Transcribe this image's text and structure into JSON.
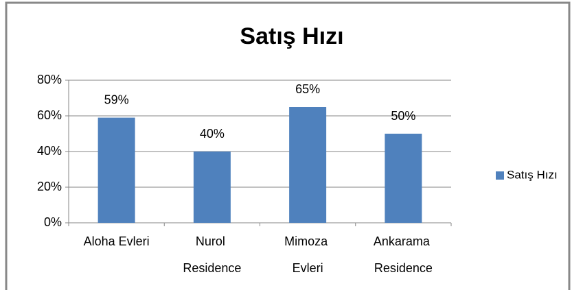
{
  "chart_data": {
    "type": "bar",
    "title": "Satış Hızı",
    "categories": [
      "Aloha Evleri",
      "Nurol Residence",
      "Mimoza Evleri",
      "Ankarama Residence"
    ],
    "series": [
      {
        "name": "Satış Hızı",
        "color": "#4f81bd",
        "values": [
          59,
          40,
          65,
          50
        ],
        "value_labels": [
          "59%",
          "40%",
          "65%",
          "50%"
        ]
      }
    ],
    "ylim": [
      0,
      80
    ],
    "yticks": [
      {
        "value": 0,
        "label": "0%"
      },
      {
        "value": 20,
        "label": "20%"
      },
      {
        "value": 40,
        "label": "40%"
      },
      {
        "value": 60,
        "label": "60%"
      },
      {
        "value": 80,
        "label": "80%"
      }
    ],
    "grid": true,
    "legend": "right"
  }
}
